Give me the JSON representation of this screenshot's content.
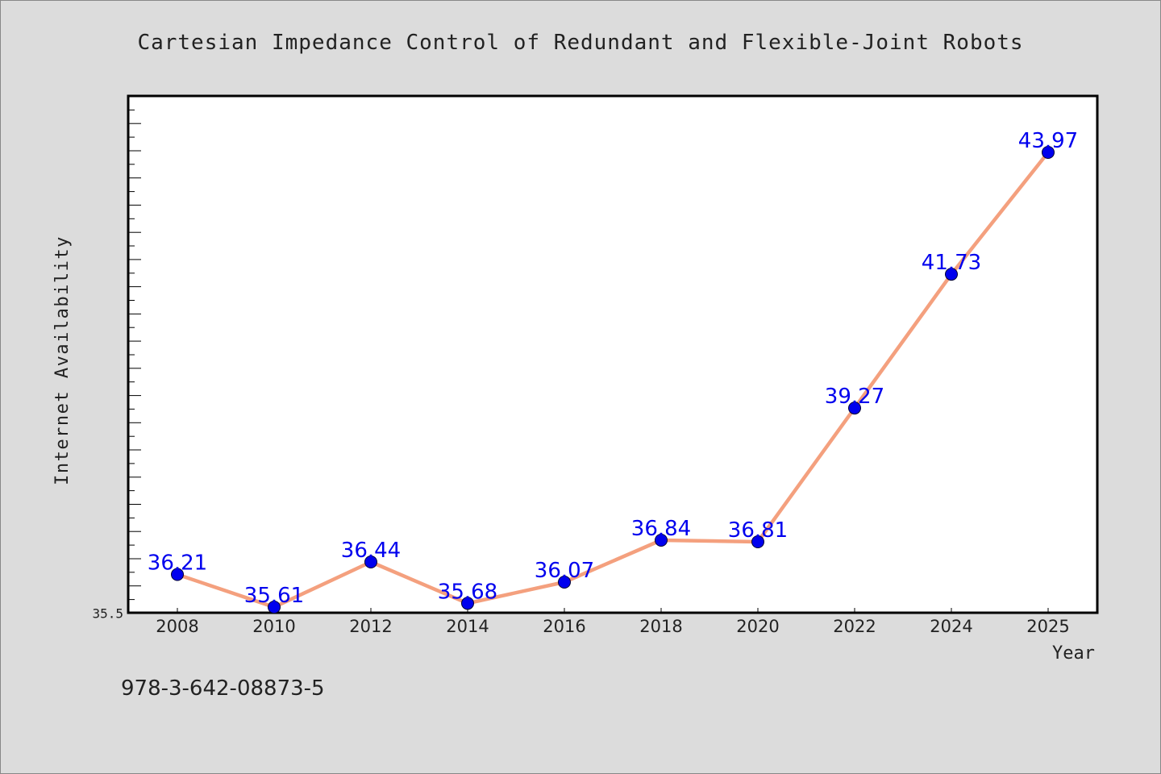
{
  "chart_data": {
    "type": "line",
    "title": "Cartesian Impedance Control of Redundant and Flexible-Joint Robots",
    "xlabel": "Year",
    "ylabel": "Internet Availability",
    "categories": [
      "2008",
      "2010",
      "2012",
      "2014",
      "2016",
      "2018",
      "2020",
      "2022",
      "2024",
      "2025"
    ],
    "series": [
      {
        "values": [
          36.21,
          35.61,
          36.44,
          35.68,
          36.07,
          36.84,
          36.81,
          39.27,
          41.73,
          43.97
        ],
        "data_labels": [
          "36.21",
          "35.61",
          "36.44",
          "35.68",
          "36.07",
          "36.84",
          "36.81",
          "39.27",
          "41.73",
          "43.97"
        ],
        "line_color": "#f4a07e",
        "marker_color": "#0000ee",
        "label_color": "#0000ee"
      }
    ],
    "ylim": [
      35.5,
      45
    ],
    "ytick_labels": [
      "35.5"
    ],
    "grid": false,
    "legend": "none"
  },
  "footer": {
    "isbn": "978-3-642-08873-5"
  },
  "colors": {
    "background": "#dcdcdc",
    "plot_background": "#ffffff",
    "axis": "#000000",
    "text": "#222222"
  }
}
